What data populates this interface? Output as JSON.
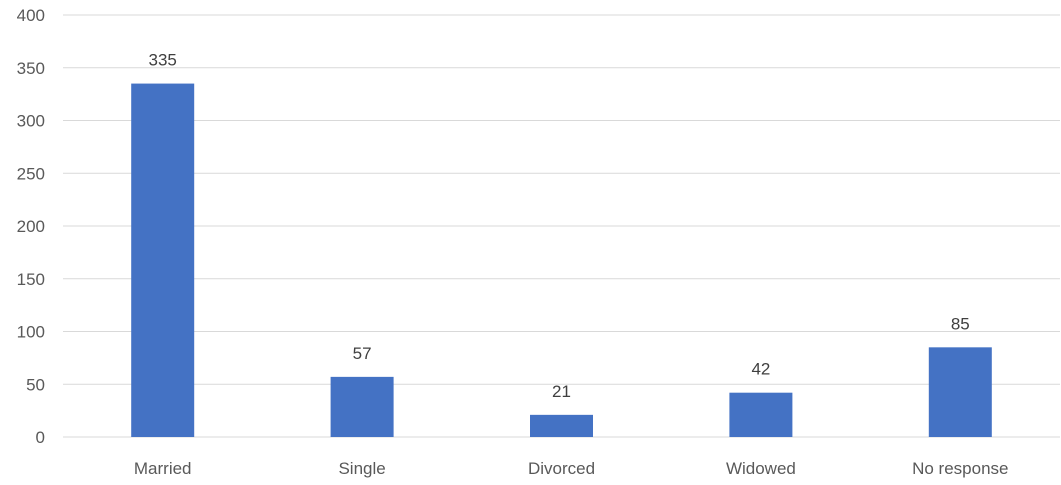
{
  "chart_data": {
    "type": "bar",
    "categories": [
      "Married",
      "Single",
      "Divorced",
      "Widowed",
      "No response"
    ],
    "values": [
      335,
      57,
      21,
      42,
      85
    ],
    "ylim": [
      0,
      400
    ],
    "yticks": [
      0,
      50,
      100,
      150,
      200,
      250,
      300,
      350,
      400
    ],
    "grid": true,
    "legend": "none",
    "data_labels": true,
    "colors": {
      "bar": "#4472c4",
      "grid": "#d9d9d9",
      "text": "#595959"
    }
  }
}
